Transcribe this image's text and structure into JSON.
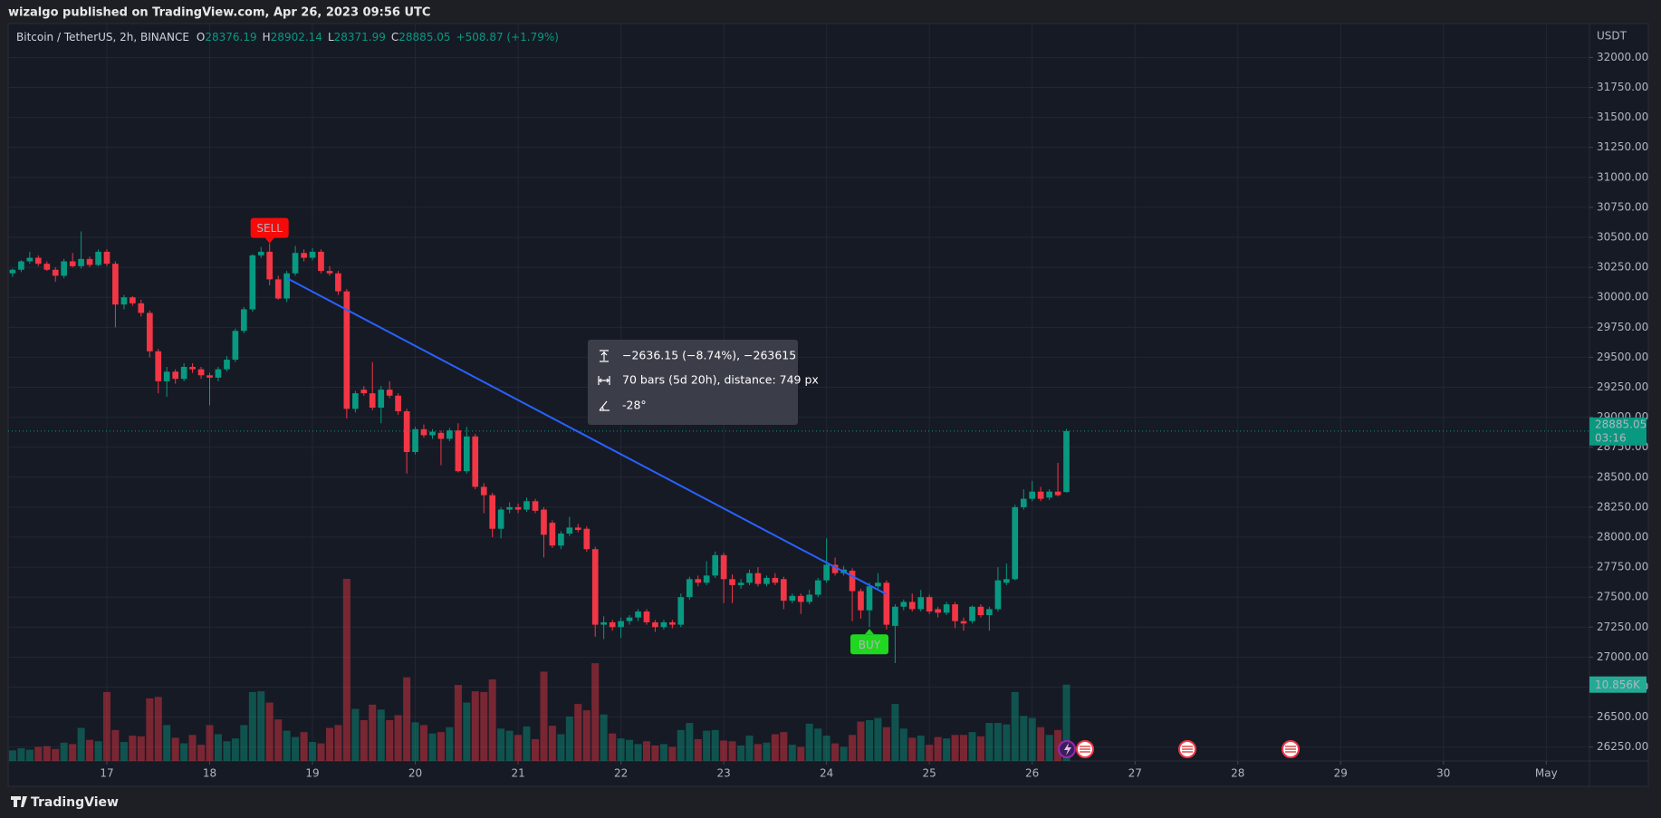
{
  "header": {
    "publisher": "wizalgo published on TradingView.com, Apr 26, 2023 09:56 UTC"
  },
  "footer": {
    "brand": "TradingView"
  },
  "chart_data": {
    "type": "candlestick",
    "symbol": "Bitcoin / TetherUS, 2h, BINANCE",
    "ohlc_labels": [
      "O",
      "H",
      "L",
      "C"
    ],
    "change": "+508.87 (+1.79%)",
    "currency": "USDT",
    "countdown": "03:16",
    "volume_last_label": "10.856K",
    "up_color": "#089981",
    "down_color": "#f23645",
    "grid": true,
    "xlim": [
      16.04,
      31.42
    ],
    "xticks": [
      17,
      18,
      19,
      20,
      21,
      22,
      23,
      24,
      25,
      26,
      27,
      28,
      29,
      30,
      {
        "value": 31,
        "label": "May"
      }
    ],
    "ylim": [
      26134,
      32283
    ],
    "yticks": [
      {
        "value": 26250,
        "label": "26250.00"
      },
      {
        "value": 26500,
        "label": "26500.00"
      },
      {
        "value": 26750,
        "label": "26750.00"
      },
      {
        "value": 27000,
        "label": "27000.00"
      },
      {
        "value": 27250,
        "label": "27250.00"
      },
      {
        "value": 27500,
        "label": "27500.00"
      },
      {
        "value": 27750,
        "label": "27750.00"
      },
      {
        "value": 28000,
        "label": "28000.00"
      },
      {
        "value": 28250,
        "label": "28250.00"
      },
      {
        "value": 28500,
        "label": "28500.00"
      },
      {
        "value": 28750,
        "label": "28750.00"
      },
      {
        "value": 29000,
        "label": "29000.00"
      },
      {
        "value": 29250,
        "label": "29250.00"
      },
      {
        "value": 29500,
        "label": "29500.00"
      },
      {
        "value": 29750,
        "label": "29750.00"
      },
      {
        "value": 30000,
        "label": "30000.00"
      },
      {
        "value": 30250,
        "label": "30250.00"
      },
      {
        "value": 30500,
        "label": "30500.00"
      },
      {
        "value": 30750,
        "label": "30750.00"
      },
      {
        "value": 31000,
        "label": "31000.00"
      },
      {
        "value": 31250,
        "label": "31250.00"
      },
      {
        "value": 31500,
        "label": "31500.00"
      },
      {
        "value": 31750,
        "label": "31750.00"
      },
      {
        "value": 32000,
        "label": "32000.00"
      }
    ],
    "x": [
      16.083,
      16.167,
      16.25,
      16.333,
      16.417,
      16.5,
      16.583,
      16.667,
      16.75,
      16.833,
      16.917,
      17,
      17.083,
      17.167,
      17.25,
      17.333,
      17.417,
      17.5,
      17.583,
      17.667,
      17.75,
      17.833,
      17.917,
      18,
      18.083,
      18.167,
      18.25,
      18.333,
      18.417,
      18.5,
      18.583,
      18.667,
      18.75,
      18.833,
      18.917,
      19,
      19.083,
      19.167,
      19.25,
      19.333,
      19.417,
      19.5,
      19.583,
      19.667,
      19.75,
      19.833,
      19.917,
      20,
      20.083,
      20.167,
      20.25,
      20.333,
      20.417,
      20.5,
      20.583,
      20.667,
      20.75,
      20.833,
      20.917,
      21,
      21.083,
      21.167,
      21.25,
      21.333,
      21.417,
      21.5,
      21.583,
      21.667,
      21.75,
      21.833,
      21.917,
      22,
      22.083,
      22.167,
      22.25,
      22.333,
      22.417,
      22.5,
      22.583,
      22.667,
      22.75,
      22.833,
      22.917,
      23,
      23.083,
      23.167,
      23.25,
      23.333,
      23.417,
      23.5,
      23.583,
      23.667,
      23.75,
      23.833,
      23.917,
      24,
      24.083,
      24.167,
      24.25,
      24.333,
      24.417,
      24.5,
      24.583,
      24.667,
      24.75,
      24.833,
      24.917,
      25,
      25.083,
      25.167,
      25.25,
      25.333,
      25.417,
      25.5,
      25.583,
      25.667,
      25.75,
      25.833,
      25.917,
      26,
      26.083,
      26.167,
      26.25,
      26.333
    ],
    "candles": [
      [
        30200,
        30240,
        30170,
        30230
      ],
      [
        30230,
        30310,
        30210,
        30300
      ],
      [
        30300,
        30380,
        30280,
        30330
      ],
      [
        30330,
        30350,
        30260,
        30280
      ],
      [
        30280,
        30300,
        30220,
        30230
      ],
      [
        30230,
        30250,
        30130,
        30180
      ],
      [
        30180,
        30320,
        30160,
        30300
      ],
      [
        30300,
        30370,
        30250,
        30260
      ],
      [
        30260,
        30550,
        30240,
        30320
      ],
      [
        30320,
        30340,
        30250,
        30270
      ],
      [
        30270,
        30400,
        30260,
        30380
      ],
      [
        30380,
        30400,
        30260,
        30280
      ],
      [
        30280,
        30300,
        29750,
        29940
      ],
      [
        29940,
        30020,
        29900,
        30000
      ],
      [
        30000,
        30010,
        29930,
        29950
      ],
      [
        29950,
        29980,
        29840,
        29870
      ],
      [
        29870,
        29890,
        29500,
        29550
      ],
      [
        29550,
        29570,
        29200,
        29300
      ],
      [
        29300,
        29420,
        29170,
        29380
      ],
      [
        29380,
        29400,
        29280,
        29320
      ],
      [
        29320,
        29450,
        29300,
        29420
      ],
      [
        29420,
        29450,
        29370,
        29400
      ],
      [
        29400,
        29420,
        29320,
        29350
      ],
      [
        29350,
        29370,
        29100,
        29330
      ],
      [
        29330,
        29420,
        29300,
        29400
      ],
      [
        29400,
        29510,
        29380,
        29480
      ],
      [
        29480,
        29740,
        29460,
        29720
      ],
      [
        29720,
        29920,
        29700,
        29900
      ],
      [
        29900,
        30360,
        29880,
        30350
      ],
      [
        30350,
        30420,
        30330,
        30380
      ],
      [
        30380,
        30450,
        30100,
        30150
      ],
      [
        30150,
        30180,
        29980,
        29990
      ],
      [
        29990,
        30220,
        29960,
        30200
      ],
      [
        30200,
        30430,
        30180,
        30370
      ],
      [
        30370,
        30400,
        30300,
        30330
      ],
      [
        30330,
        30410,
        30310,
        30380
      ],
      [
        30380,
        30400,
        30200,
        30220
      ],
      [
        30220,
        30260,
        30180,
        30200
      ],
      [
        30200,
        30220,
        30020,
        30050
      ],
      [
        30050,
        30070,
        28990,
        29070
      ],
      [
        29070,
        29220,
        29040,
        29200
      ],
      [
        29230,
        29260,
        29180,
        29200
      ],
      [
        29200,
        29460,
        29060,
        29080
      ],
      [
        29080,
        29260,
        28950,
        29230
      ],
      [
        29230,
        29300,
        29160,
        29180
      ],
      [
        29180,
        29200,
        29020,
        29050
      ],
      [
        29050,
        29070,
        28530,
        28710
      ],
      [
        28710,
        28920,
        28690,
        28900
      ],
      [
        28900,
        28940,
        28830,
        28850
      ],
      [
        28850,
        28900,
        28820,
        28880
      ],
      [
        28870,
        28890,
        28600,
        28820
      ],
      [
        28820,
        28910,
        28800,
        28890
      ],
      [
        28890,
        28950,
        28540,
        28550
      ],
      [
        28550,
        28920,
        28530,
        28840
      ],
      [
        28840,
        28860,
        28400,
        28420
      ],
      [
        28420,
        28450,
        28200,
        28350
      ],
      [
        28350,
        28370,
        28000,
        28070
      ],
      [
        28070,
        28250,
        27990,
        28230
      ],
      [
        28230,
        28290,
        28200,
        28250
      ],
      [
        28250,
        28280,
        28200,
        28230
      ],
      [
        28230,
        28330,
        28210,
        28300
      ],
      [
        28300,
        28320,
        28200,
        28220
      ],
      [
        28230,
        28250,
        27830,
        28020
      ],
      [
        28120,
        28140,
        27910,
        27930
      ],
      [
        27930,
        28050,
        27900,
        28030
      ],
      [
        28030,
        28170,
        28010,
        28080
      ],
      [
        28080,
        28110,
        28040,
        28060
      ],
      [
        28070,
        28090,
        27880,
        27900
      ],
      [
        27900,
        27920,
        27170,
        27270
      ],
      [
        27270,
        27340,
        27150,
        27290
      ],
      [
        27290,
        27310,
        27220,
        27250
      ],
      [
        27250,
        27330,
        27160,
        27300
      ],
      [
        27300,
        27350,
        27270,
        27330
      ],
      [
        27330,
        27400,
        27300,
        27380
      ],
      [
        27380,
        27400,
        27270,
        27290
      ],
      [
        27290,
        27310,
        27210,
        27250
      ],
      [
        27250,
        27310,
        27230,
        27290
      ],
      [
        27290,
        27310,
        27240,
        27270
      ],
      [
        27270,
        27530,
        27250,
        27500
      ],
      [
        27500,
        27670,
        27480,
        27650
      ],
      [
        27650,
        27680,
        27590,
        27620
      ],
      [
        27620,
        27800,
        27600,
        27680
      ],
      [
        27680,
        27880,
        27660,
        27850
      ],
      [
        27850,
        27870,
        27450,
        27650
      ],
      [
        27650,
        27690,
        27450,
        27600
      ],
      [
        27600,
        27650,
        27570,
        27620
      ],
      [
        27620,
        27730,
        27600,
        27700
      ],
      [
        27700,
        27750,
        27590,
        27610
      ],
      [
        27610,
        27680,
        27590,
        27660
      ],
      [
        27660,
        27700,
        27600,
        27620
      ],
      [
        27650,
        27670,
        27400,
        27470
      ],
      [
        27470,
        27530,
        27450,
        27510
      ],
      [
        27510,
        27530,
        27360,
        27460
      ],
      [
        27460,
        27560,
        27440,
        27520
      ],
      [
        27520,
        27660,
        27500,
        27640
      ],
      [
        27640,
        27990,
        27620,
        27770
      ],
      [
        27770,
        27830,
        27680,
        27700
      ],
      [
        27700,
        27760,
        27680,
        27730
      ],
      [
        27720,
        27740,
        27300,
        27550
      ],
      [
        27550,
        27570,
        27320,
        27390
      ],
      [
        27390,
        27620,
        27250,
        27590
      ],
      [
        27590,
        27700,
        27570,
        27620
      ],
      [
        27620,
        27640,
        27230,
        27270
      ],
      [
        27260,
        27440,
        26950,
        27420
      ],
      [
        27420,
        27480,
        27390,
        27460
      ],
      [
        27460,
        27530,
        27380,
        27400
      ],
      [
        27400,
        27560,
        27380,
        27500
      ],
      [
        27500,
        27520,
        27360,
        27380
      ],
      [
        27400,
        27420,
        27330,
        27370
      ],
      [
        27370,
        27460,
        27350,
        27440
      ],
      [
        27440,
        27460,
        27240,
        27300
      ],
      [
        27300,
        27330,
        27220,
        27280
      ],
      [
        27300,
        27430,
        27280,
        27420
      ],
      [
        27420,
        27440,
        27330,
        27350
      ],
      [
        27350,
        27420,
        27220,
        27400
      ],
      [
        27400,
        27750,
        27380,
        27640
      ],
      [
        27620,
        27780,
        27600,
        27650
      ],
      [
        27650,
        28270,
        27640,
        28250
      ],
      [
        28250,
        28400,
        28230,
        28320
      ],
      [
        28320,
        28470,
        28300,
        28380
      ],
      [
        28380,
        28420,
        28300,
        28320
      ],
      [
        28330,
        28400,
        28310,
        28380
      ],
      [
        28380,
        28620,
        28340,
        28350
      ],
      [
        28376.19,
        28902.14,
        28371.99,
        28885.05
      ]
    ],
    "volume": [
      1500,
      1800,
      1600,
      2000,
      2100,
      1700,
      2600,
      2400,
      4700,
      3000,
      2800,
      9800,
      4400,
      2700,
      3600,
      3500,
      8900,
      9100,
      5100,
      3300,
      2500,
      3700,
      2300,
      5100,
      3800,
      2800,
      3200,
      5100,
      9800,
      9900,
      8300,
      5900,
      4300,
      3400,
      4100,
      2700,
      2500,
      4700,
      5100,
      25900,
      7400,
      5800,
      8000,
      7300,
      5800,
      6500,
      11900,
      5500,
      5100,
      3900,
      4100,
      4800,
      10800,
      8300,
      9900,
      9800,
      11600,
      4600,
      4300,
      3700,
      4900,
      3100,
      12700,
      5000,
      3800,
      6300,
      8100,
      7200,
      13900,
      6600,
      3900,
      3200,
      3000,
      2400,
      2800,
      2200,
      2400,
      2000,
      4400,
      5400,
      3100,
      4300,
      4400,
      2900,
      2800,
      2200,
      3600,
      2400,
      2600,
      3800,
      4100,
      2300,
      2000,
      5300,
      4600,
      3600,
      2500,
      2000,
      3700,
      5600,
      5800,
      6100,
      4800,
      8100,
      4600,
      3300,
      3600,
      2300,
      3400,
      3200,
      3700,
      3700,
      4100,
      3500,
      5400,
      5400,
      5200,
      9800,
      6400,
      6100,
      4800,
      3700,
      4400,
      10856
    ],
    "trendline": {
      "x": [
        18.75,
        24.583
      ],
      "y": [
        30160,
        27523.85
      ],
      "color": "#2962ff"
    },
    "signals": [
      {
        "label": "SELL",
        "x": 18.583,
        "color": "#f70a0a"
      },
      {
        "label": "BUY",
        "x": 24.417,
        "color": "#1fd81f"
      }
    ],
    "measure": {
      "price_change": "−2636.15 (−8.74%), −263615",
      "bars": "70 bars (5d 20h), distance: 749 px",
      "angle": "-28°"
    }
  }
}
